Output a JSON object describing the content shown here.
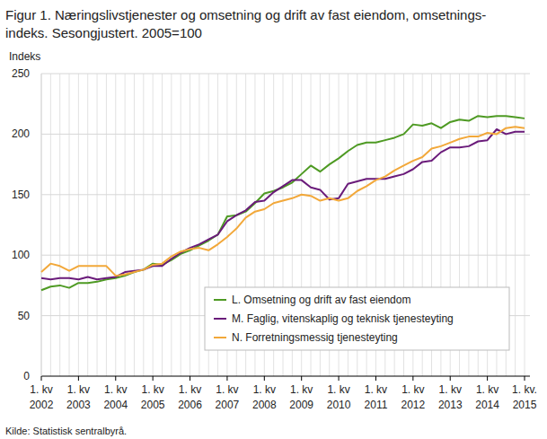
{
  "chart_data": {
    "type": "line",
    "title": "Figur 1. Næringslivstjenester og omsetning og drift av fast eiendom, omsetnings-\nindeks. Sesongjustert. 2005=100",
    "y_label": "Indeks",
    "source": "Kilde: Statistisk sentralbyrå.",
    "categories": [
      "1. kv\n2002",
      null,
      null,
      null,
      "1. kv\n2003",
      null,
      null,
      null,
      "1. kv\n2004",
      null,
      null,
      null,
      "1. kv\n2005",
      null,
      null,
      null,
      "1. kv\n2006",
      null,
      null,
      null,
      "1. kv\n2007",
      null,
      null,
      null,
      "1. kv\n2008",
      null,
      null,
      null,
      "1. kv\n2009",
      null,
      null,
      null,
      "1. kv\n2010",
      null,
      null,
      null,
      "1. kv\n2011",
      null,
      null,
      null,
      "1. kv\n2012",
      null,
      null,
      null,
      "1. kv\n2013",
      null,
      null,
      null,
      "1. kv\n2014",
      null,
      null,
      null,
      "1. kv.\n2015"
    ],
    "series": [
      {
        "name": "L. Omsetning og drift av fast eiendom",
        "color": "#4e9a23",
        "values": [
          71,
          74,
          75,
          73,
          77,
          77,
          78,
          80,
          81,
          83,
          86,
          88,
          93,
          92,
          96,
          101,
          104,
          108,
          112,
          117,
          132,
          133,
          136,
          143,
          151,
          153,
          156,
          160,
          167,
          174,
          169,
          175,
          180,
          186,
          191,
          193,
          193,
          195,
          197,
          200,
          208,
          207,
          209,
          205,
          210,
          212,
          211,
          215,
          214,
          215,
          215,
          214,
          213
        ]
      },
      {
        "name": "M. Faglig, vitenskaplig og teknisk tjenesteyting",
        "color": "#6a1b7a",
        "values": [
          81,
          80,
          81,
          81,
          80,
          82,
          80,
          81,
          82,
          86,
          87,
          88,
          91,
          91,
          97,
          102,
          106,
          109,
          113,
          117,
          128,
          133,
          137,
          144,
          145,
          152,
          157,
          162,
          162,
          156,
          154,
          146,
          147,
          159,
          161,
          163,
          163,
          163,
          165,
          167,
          171,
          177,
          178,
          185,
          189,
          189,
          190,
          194,
          195,
          204,
          200,
          202,
          202
        ]
      },
      {
        "name": "N. Forretningsmessig tjenesteyting",
        "color": "#f2a83a",
        "values": [
          86,
          93,
          91,
          87,
          91,
          91,
          91,
          91,
          83,
          84,
          86,
          88,
          92,
          93,
          99,
          103,
          105,
          106,
          104,
          109,
          115,
          122,
          131,
          136,
          138,
          143,
          145,
          147,
          150,
          149,
          145,
          147,
          145,
          147,
          153,
          157,
          162,
          165,
          170,
          174,
          178,
          181,
          188,
          190,
          193,
          196,
          198,
          198,
          201,
          200,
          205,
          206,
          205
        ]
      }
    ],
    "ylim": [
      0,
      250
    ],
    "yticks": [
      0,
      50,
      100,
      150,
      200,
      250
    ],
    "grid": true,
    "legend": "lower right"
  }
}
